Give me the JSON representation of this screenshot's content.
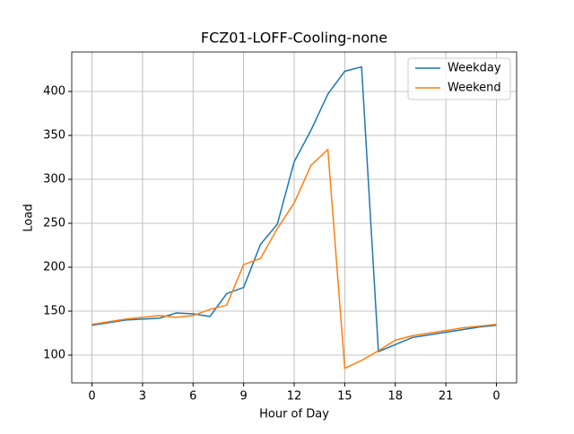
{
  "chart_data": {
    "type": "line",
    "title": "FCZ01-LOFF-Cooling-none",
    "x_label": "Hour of Day",
    "y_label": "Load",
    "x": [
      0,
      1,
      2,
      3,
      4,
      5,
      6,
      7,
      8,
      9,
      10,
      11,
      12,
      13,
      14,
      15,
      16,
      17,
      18,
      19,
      20,
      21,
      22,
      23,
      24
    ],
    "series": [
      {
        "name": "Weekday",
        "color": "#1f77b4",
        "values": [
          134,
          137,
          140,
          141,
          142,
          148,
          147,
          144,
          170,
          177,
          226,
          249,
          320,
          356,
          397,
          423,
          428,
          104,
          112,
          120,
          123,
          126,
          129,
          132,
          134
        ]
      },
      {
        "name": "Weekend",
        "color": "#ff7f0e",
        "values": [
          135,
          138,
          141,
          143,
          145,
          143,
          145,
          152,
          157,
          203,
          210,
          244,
          273,
          316,
          334,
          85,
          94,
          105,
          117,
          122,
          125,
          128,
          131,
          133,
          135
        ]
      }
    ],
    "xlim": [
      -1.2,
      25.2
    ],
    "xticks": [
      0,
      3,
      6,
      9,
      12,
      15,
      18,
      21,
      {
        "value": 24,
        "label": "0"
      }
    ],
    "ylim": [
      68.4,
      444.9
    ],
    "yticks": [
      100,
      150,
      200,
      250,
      300,
      350,
      400
    ],
    "grid": true,
    "legend": "upper right"
  }
}
